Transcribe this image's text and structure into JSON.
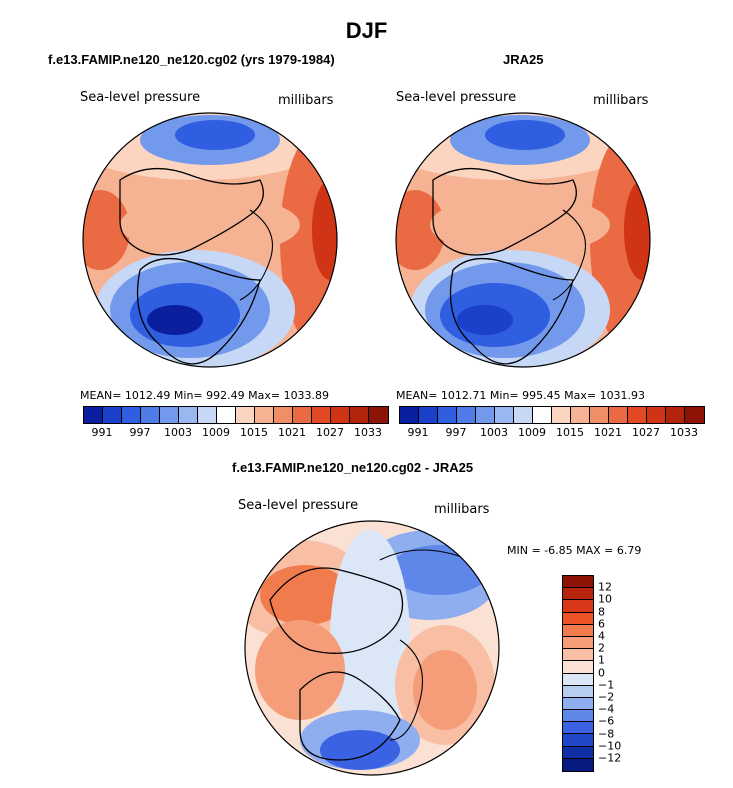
{
  "title": "DJF",
  "panels": [
    {
      "heading": "f.e13.FAMIP.ne120_ne120.cg02 (yrs 1979-1984)",
      "variable": "Sea-level pressure",
      "units": "millibars",
      "stats": "MEAN= 1012.49   Min= 992.49   Max= 1033.89"
    },
    {
      "heading": "JRA25",
      "variable": "Sea-level pressure",
      "units": "millibars",
      "stats": "MEAN= 1012.71   Min= 995.45   Max= 1031.93"
    },
    {
      "heading": "f.e13.FAMIP.ne120_ne120.cg02 - JRA25",
      "variable": "Sea-level pressure",
      "units": "millibars",
      "stats": "MIN =   -6.85  MAX =    6.79"
    }
  ],
  "colorbar_top": {
    "labels": [
      "991",
      "997",
      "1003",
      "1009",
      "1015",
      "1021",
      "1027",
      "1033"
    ],
    "colors": [
      "#0a1f9e",
      "#1b40c9",
      "#2f5ee0",
      "#4f7ce8",
      "#7399ec",
      "#9ab8f0",
      "#c6d8f5",
      "#ffffff",
      "#fbd5c0",
      "#f6b394",
      "#f08e68",
      "#ea6a44",
      "#e24a26",
      "#cf3515",
      "#b3240d",
      "#8c1305"
    ]
  },
  "colorbar_diff": {
    "labels": [
      "12",
      "10",
      "8",
      "6",
      "4",
      "2",
      "1",
      "0",
      "−1",
      "−2",
      "−4",
      "−6",
      "−8",
      "−10",
      "−12"
    ],
    "colors": [
      "#8c1305",
      "#b8250c",
      "#d9381a",
      "#ec5326",
      "#f07c4e",
      "#f59d78",
      "#f8bfa5",
      "#fbe1d3",
      "#dbe7f7",
      "#b7cdf2",
      "#8eaef0",
      "#5f87ea",
      "#3a62e2",
      "#2148c8",
      "#0f2fa7",
      "#061a80"
    ]
  }
}
